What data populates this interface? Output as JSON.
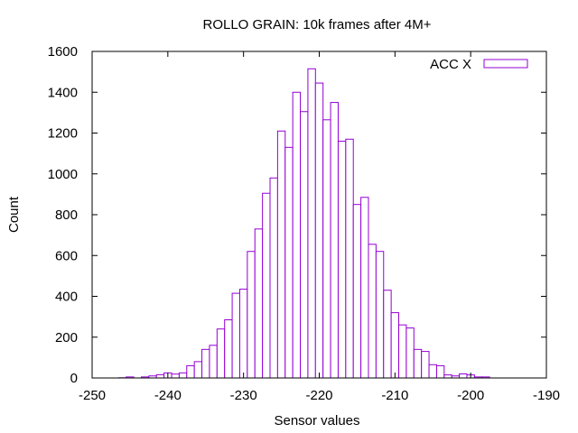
{
  "chart_data": {
    "type": "bar",
    "title": "ROLLO GRAIN: 10k frames after 4M+",
    "xlabel": "Sensor values",
    "ylabel": "Count",
    "xlim": [
      -250,
      -190
    ],
    "ylim": [
      0,
      1600
    ],
    "xticks": [
      -250,
      -240,
      -230,
      -220,
      -210,
      -200,
      -190
    ],
    "yticks": [
      0,
      200,
      400,
      600,
      800,
      1000,
      1200,
      1400,
      1600
    ],
    "bin_width": 1,
    "legend": "top-right",
    "series": [
      {
        "name": "ACC X",
        "color": "#9400d3",
        "x": [
          -246,
          -245,
          -244,
          -243,
          -242,
          -241,
          -240,
          -239,
          -238,
          -237,
          -236,
          -235,
          -234,
          -233,
          -232,
          -231,
          -230,
          -229,
          -228,
          -227,
          -226,
          -225,
          -224,
          -223,
          -222,
          -221,
          -220,
          -219,
          -218,
          -217,
          -216,
          -215,
          -214,
          -213,
          -212,
          -211,
          -210,
          -209,
          -208,
          -207,
          -206,
          -205,
          -204,
          -203,
          -202,
          -201,
          -200,
          -199,
          -198,
          -197
        ],
        "values": [
          1,
          5,
          0,
          5,
          10,
          16,
          25,
          19,
          25,
          60,
          80,
          140,
          160,
          240,
          285,
          415,
          435,
          620,
          730,
          905,
          980,
          1210,
          1130,
          1400,
          1305,
          1515,
          1445,
          1265,
          1350,
          1160,
          1170,
          850,
          885,
          655,
          620,
          430,
          320,
          260,
          245,
          140,
          130,
          65,
          60,
          15,
          10,
          20,
          15,
          5,
          5,
          0
        ]
      }
    ]
  }
}
